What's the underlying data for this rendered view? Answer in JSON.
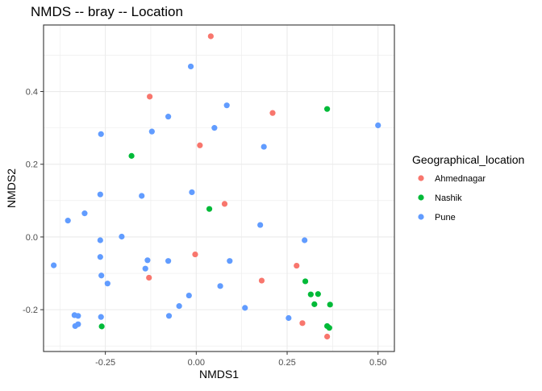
{
  "chart_data": {
    "type": "scatter",
    "title": "NMDS -- bray -- Location",
    "xlabel": "NMDS1",
    "ylabel": "NMDS2",
    "xlim": [
      -0.42,
      0.545
    ],
    "ylim": [
      -0.315,
      0.583
    ],
    "x_ticks": [
      -0.25,
      0.0,
      0.25,
      0.5
    ],
    "x_tick_labels": [
      "-0.25",
      "0.00",
      "0.25",
      "0.50"
    ],
    "y_ticks": [
      -0.2,
      0.0,
      0.2,
      0.4
    ],
    "y_tick_labels": [
      "-0.2",
      "0.0",
      "0.2",
      "0.4"
    ],
    "grid": true,
    "legend": {
      "title": "Geographical_location",
      "placement": "right"
    },
    "series": [
      {
        "name": "Ahmednagar",
        "color": "#F8766D",
        "points": [
          [
            0.04,
            0.552
          ],
          [
            -0.128,
            0.386
          ],
          [
            0.21,
            0.341
          ],
          [
            0.01,
            0.252
          ],
          [
            0.078,
            0.091
          ],
          [
            -0.003,
            -0.048
          ],
          [
            0.276,
            -0.079
          ],
          [
            -0.13,
            -0.112
          ],
          [
            0.18,
            -0.12
          ],
          [
            0.292,
            -0.237
          ],
          [
            0.36,
            -0.274
          ]
        ]
      },
      {
        "name": "Nashik",
        "color": "#00BA38",
        "points": [
          [
            0.36,
            0.352
          ],
          [
            -0.178,
            0.223
          ],
          [
            0.036,
            0.077
          ],
          [
            0.3,
            -0.122
          ],
          [
            0.315,
            -0.158
          ],
          [
            0.335,
            -0.157
          ],
          [
            0.325,
            -0.185
          ],
          [
            0.368,
            -0.186
          ],
          [
            0.36,
            -0.245
          ],
          [
            0.366,
            -0.25
          ],
          [
            -0.26,
            -0.246
          ]
        ]
      },
      {
        "name": "Pune",
        "color": "#619CFF",
        "points": [
          [
            -0.015,
            0.469
          ],
          [
            0.084,
            0.362
          ],
          [
            -0.077,
            0.331
          ],
          [
            0.5,
            0.307
          ],
          [
            0.05,
            0.3
          ],
          [
            -0.122,
            0.29
          ],
          [
            -0.262,
            0.283
          ],
          [
            0.186,
            0.248
          ],
          [
            -0.264,
            0.117
          ],
          [
            -0.012,
            0.123
          ],
          [
            -0.15,
            0.113
          ],
          [
            -0.307,
            0.065
          ],
          [
            -0.353,
            0.045
          ],
          [
            0.176,
            0.033
          ],
          [
            -0.205,
            0.001
          ],
          [
            -0.264,
            -0.009
          ],
          [
            0.298,
            -0.009
          ],
          [
            -0.264,
            -0.055
          ],
          [
            -0.134,
            -0.064
          ],
          [
            0.092,
            -0.066
          ],
          [
            -0.077,
            -0.066
          ],
          [
            -0.14,
            -0.087
          ],
          [
            -0.392,
            -0.078
          ],
          [
            -0.261,
            -0.106
          ],
          [
            -0.244,
            -0.128
          ],
          [
            0.066,
            -0.135
          ],
          [
            -0.02,
            -0.161
          ],
          [
            -0.047,
            -0.19
          ],
          [
            0.134,
            -0.195
          ],
          [
            -0.075,
            -0.217
          ],
          [
            -0.335,
            -0.215
          ],
          [
            -0.325,
            -0.217
          ],
          [
            -0.262,
            -0.22
          ],
          [
            0.254,
            -0.223
          ],
          [
            -0.325,
            -0.24
          ],
          [
            -0.333,
            -0.245
          ]
        ]
      }
    ]
  }
}
